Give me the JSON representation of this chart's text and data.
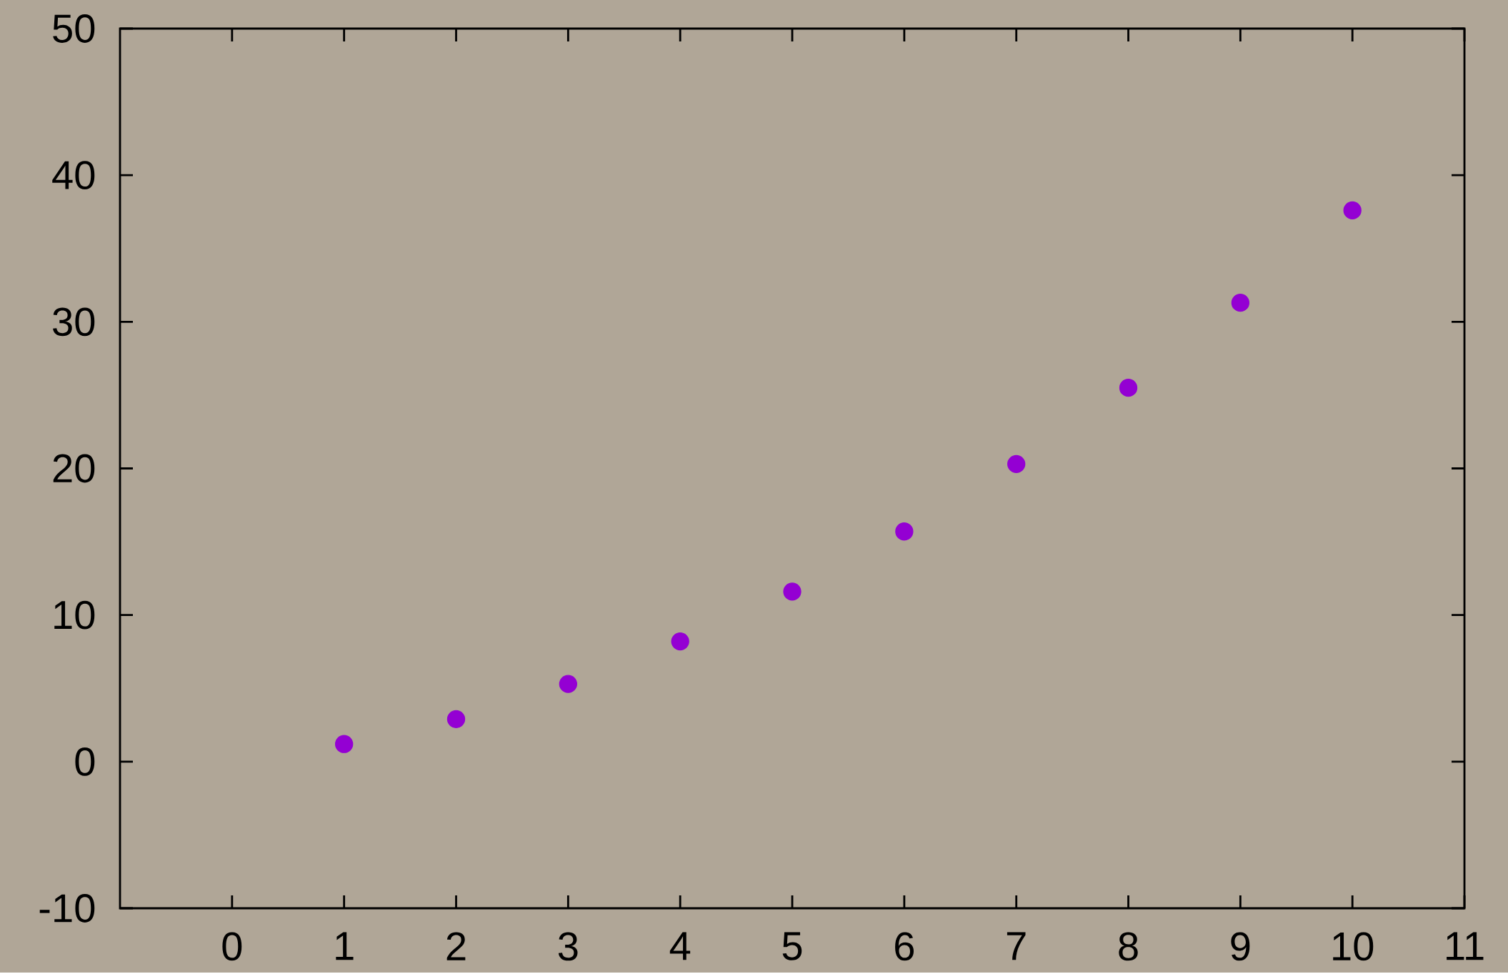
{
  "chart_data": {
    "type": "scatter",
    "x": [
      1,
      2,
      3,
      4,
      5,
      6,
      7,
      8,
      9,
      10
    ],
    "values": [
      1.2,
      2.9,
      5.3,
      8.2,
      11.6,
      15.7,
      20.3,
      25.5,
      31.3,
      37.6
    ],
    "color": "#9400d3",
    "marker": "circle",
    "xlim": [
      -1,
      11
    ],
    "xticks": [
      0,
      1,
      2,
      3,
      4,
      5,
      6,
      7,
      8,
      9,
      10,
      11
    ],
    "ylim": [
      -10,
      50
    ],
    "yticks": [
      -10,
      0,
      10,
      20,
      30,
      40,
      50
    ],
    "grid": false
  }
}
